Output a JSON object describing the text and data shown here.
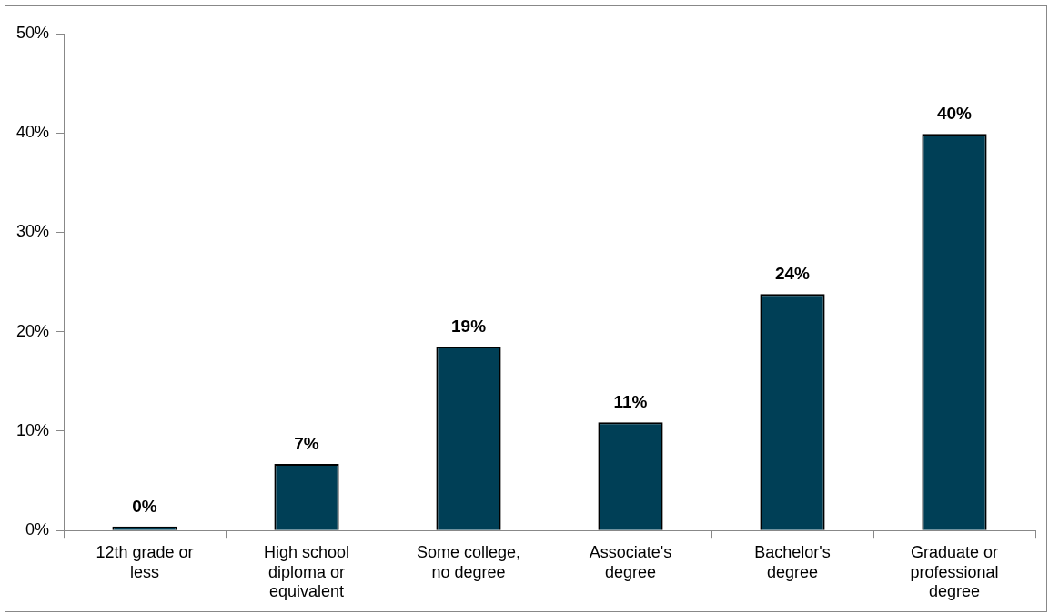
{
  "chart_data": {
    "type": "bar",
    "categories": [
      "12th grade or less",
      "High school diploma or equivalent",
      "Some college, no degree",
      "Associate's degree",
      "Bachelor's degree",
      "Graduate or professional degree"
    ],
    "values": [
      0.4,
      6.7,
      18.5,
      10.9,
      23.8,
      39.9
    ],
    "value_labels": [
      "0%",
      "7%",
      "19%",
      "11%",
      "24%",
      "40%"
    ],
    "color": "#003f56",
    "ylim": [
      0,
      50
    ],
    "yticks": [
      {
        "value": 0,
        "label": "0%"
      },
      {
        "value": 10,
        "label": "10%"
      },
      {
        "value": 20,
        "label": "20%"
      },
      {
        "value": 30,
        "label": "30%"
      },
      {
        "value": 40,
        "label": "40%"
      },
      {
        "value": 50,
        "label": "50%"
      }
    ],
    "grid": false,
    "legend": false
  }
}
